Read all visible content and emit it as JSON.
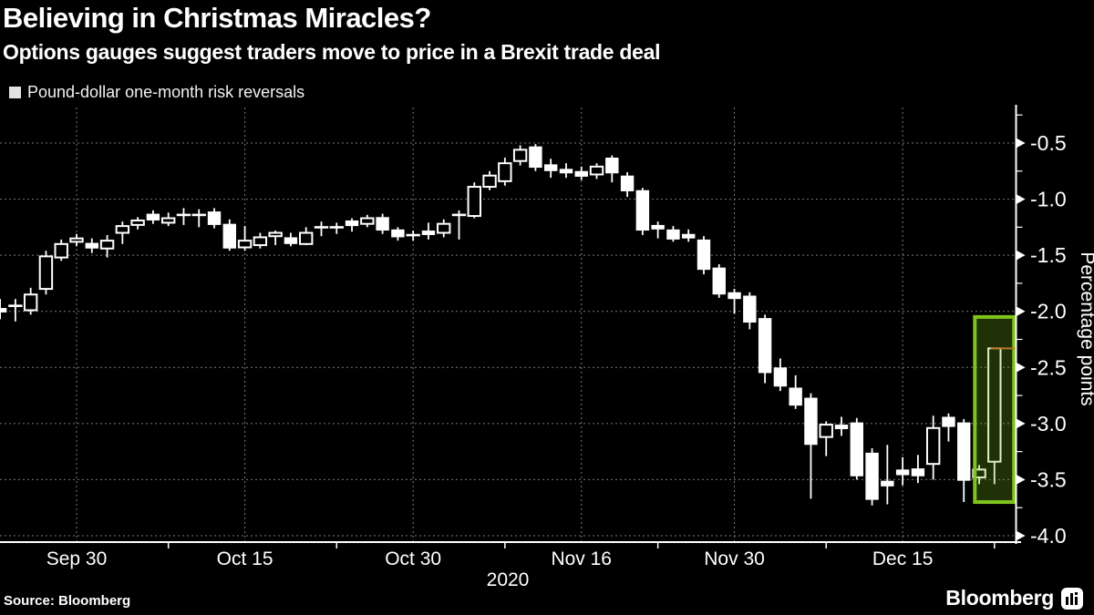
{
  "header": {
    "title": "Believing in Christmas Miracles?",
    "subtitle": "Options gauges suggest traders move to price in a Brexit trade deal"
  },
  "legend": {
    "label": "Pound-dollar one-month risk reversals"
  },
  "footer": {
    "source_label": "Source: Bloomberg",
    "brand_label": "Bloomberg"
  },
  "colors": {
    "background": "#000000",
    "text": "#ffffff",
    "grid": "#7a7a7a",
    "axis": "#ffffff",
    "candle": "#ffffff",
    "legend_swatch": "#e4e4e4",
    "highlight_border": "#7FC31C",
    "highlight_fill": "rgba(127,195,28,0.25)",
    "last_price": "#B97A2A"
  },
  "chart_data": {
    "type": "candlestick",
    "title": "Believing in Christmas Miracles?",
    "series_name": "Pound-dollar one-month risk reversals",
    "ylabel": "Percentage points",
    "x_year_label": "2020",
    "ylim": [
      -4.15,
      -0.17
    ],
    "grid": true,
    "axis_position": "right",
    "legend_position": "top-left",
    "y_tick_values": [
      -0.5,
      -1.0,
      -1.5,
      -2.0,
      -2.5,
      -3.0,
      -3.5,
      -4.0
    ],
    "y_tick_labels": [
      "-0.5",
      "-1.0",
      "-1.5",
      "-2.0",
      "-2.5",
      "-3.0",
      "-3.5",
      "-4.0"
    ],
    "y_minor_step": 0.25,
    "x_labels": [
      {
        "label": "Sep 30",
        "index": 5
      },
      {
        "label": "Oct 15",
        "index": 16
      },
      {
        "label": "Oct 30",
        "index": 27
      },
      {
        "label": "Nov 16",
        "index": 38
      },
      {
        "label": "Nov 30",
        "index": 48
      },
      {
        "label": "Dec 15",
        "index": 59
      }
    ],
    "x_minor_tick_indices": [
      11,
      22,
      33,
      43,
      54,
      65
    ],
    "candles": [
      {
        "date": "Sep 23",
        "o": -1.97,
        "h": -1.89,
        "l": -2.07,
        "c": -2.01
      },
      {
        "date": "Sep 24",
        "o": -1.97,
        "h": -1.89,
        "l": -2.09,
        "c": -1.95
      },
      {
        "date": "Sep 25",
        "o": -1.99,
        "h": -1.79,
        "l": -2.03,
        "c": -1.85
      },
      {
        "date": "Sep 28",
        "o": -1.8,
        "h": -1.46,
        "l": -1.85,
        "c": -1.51
      },
      {
        "date": "Sep 29",
        "o": -1.52,
        "h": -1.36,
        "l": -1.55,
        "c": -1.4
      },
      {
        "date": "Sep 30",
        "o": -1.38,
        "h": -1.31,
        "l": -1.42,
        "c": -1.35
      },
      {
        "date": "Oct 1",
        "o": -1.39,
        "h": -1.35,
        "l": -1.48,
        "c": -1.44
      },
      {
        "date": "Oct 2",
        "o": -1.44,
        "h": -1.32,
        "l": -1.52,
        "c": -1.37
      },
      {
        "date": "Oct 5",
        "o": -1.3,
        "h": -1.2,
        "l": -1.4,
        "c": -1.24
      },
      {
        "date": "Oct 6",
        "o": -1.23,
        "h": -1.16,
        "l": -1.27,
        "c": -1.19
      },
      {
        "date": "Oct 7",
        "o": -1.13,
        "h": -1.1,
        "l": -1.22,
        "c": -1.19
      },
      {
        "date": "Oct 8",
        "o": -1.21,
        "h": -1.12,
        "l": -1.24,
        "c": -1.17
      },
      {
        "date": "Oct 9",
        "o": -1.16,
        "h": -1.08,
        "l": -1.23,
        "c": -1.14
      },
      {
        "date": "Oct 12",
        "o": -1.14,
        "h": -1.09,
        "l": -1.25,
        "c": -1.16
      },
      {
        "date": "Oct 13",
        "o": -1.11,
        "h": -1.08,
        "l": -1.26,
        "c": -1.23
      },
      {
        "date": "Oct 14",
        "o": -1.22,
        "h": -1.18,
        "l": -1.46,
        "c": -1.44
      },
      {
        "date": "Oct 15",
        "o": -1.43,
        "h": -1.24,
        "l": -1.46,
        "c": -1.37
      },
      {
        "date": "Oct 16",
        "o": -1.41,
        "h": -1.3,
        "l": -1.44,
        "c": -1.34
      },
      {
        "date": "Oct 19",
        "o": -1.33,
        "h": -1.28,
        "l": -1.41,
        "c": -1.3
      },
      {
        "date": "Oct 20",
        "o": -1.34,
        "h": -1.3,
        "l": -1.42,
        "c": -1.4
      },
      {
        "date": "Oct 21",
        "o": -1.4,
        "h": -1.25,
        "l": -1.41,
        "c": -1.3
      },
      {
        "date": "Oct 22",
        "o": -1.26,
        "h": -1.2,
        "l": -1.33,
        "c": -1.25
      },
      {
        "date": "Oct 23",
        "o": -1.25,
        "h": -1.21,
        "l": -1.31,
        "c": -1.27
      },
      {
        "date": "Oct 26",
        "o": -1.19,
        "h": -1.17,
        "l": -1.29,
        "c": -1.24
      },
      {
        "date": "Oct 27",
        "o": -1.22,
        "h": -1.14,
        "l": -1.25,
        "c": -1.17
      },
      {
        "date": "Oct 28",
        "o": -1.16,
        "h": -1.13,
        "l": -1.31,
        "c": -1.28
      },
      {
        "date": "Oct 29",
        "o": -1.27,
        "h": -1.25,
        "l": -1.37,
        "c": -1.34
      },
      {
        "date": "Oct 30",
        "o": -1.32,
        "h": -1.28,
        "l": -1.37,
        "c": -1.33
      },
      {
        "date": "Nov 2",
        "o": -1.28,
        "h": -1.21,
        "l": -1.36,
        "c": -1.32
      },
      {
        "date": "Nov 3",
        "o": -1.3,
        "h": -1.18,
        "l": -1.34,
        "c": -1.22
      },
      {
        "date": "Nov 4",
        "o": -1.14,
        "h": -1.1,
        "l": -1.36,
        "c": -1.16
      },
      {
        "date": "Nov 5",
        "o": -1.15,
        "h": -0.85,
        "l": -1.17,
        "c": -0.89
      },
      {
        "date": "Nov 6",
        "o": -0.89,
        "h": -0.75,
        "l": -0.92,
        "c": -0.79
      },
      {
        "date": "Nov 9",
        "o": -0.84,
        "h": -0.63,
        "l": -0.88,
        "c": -0.68
      },
      {
        "date": "Nov 10",
        "o": -0.66,
        "h": -0.52,
        "l": -0.7,
        "c": -0.56
      },
      {
        "date": "Nov 11",
        "o": -0.53,
        "h": -0.51,
        "l": -0.75,
        "c": -0.72
      },
      {
        "date": "Nov 12",
        "o": -0.69,
        "h": -0.64,
        "l": -0.81,
        "c": -0.75
      },
      {
        "date": "Nov 13",
        "o": -0.73,
        "h": -0.68,
        "l": -0.81,
        "c": -0.77
      },
      {
        "date": "Nov 16",
        "o": -0.75,
        "h": -0.71,
        "l": -0.83,
        "c": -0.8
      },
      {
        "date": "Nov 17",
        "o": -0.78,
        "h": -0.68,
        "l": -0.82,
        "c": -0.71
      },
      {
        "date": "Nov 18",
        "o": -0.63,
        "h": -0.61,
        "l": -0.85,
        "c": -0.77
      },
      {
        "date": "Nov 19",
        "o": -0.79,
        "h": -0.76,
        "l": -0.98,
        "c": -0.93
      },
      {
        "date": "Nov 20",
        "o": -0.92,
        "h": -0.9,
        "l": -1.32,
        "c": -1.28
      },
      {
        "date": "Nov 23",
        "o": -1.23,
        "h": -1.2,
        "l": -1.35,
        "c": -1.27
      },
      {
        "date": "Nov 24",
        "o": -1.27,
        "h": -1.24,
        "l": -1.38,
        "c": -1.36
      },
      {
        "date": "Nov 25",
        "o": -1.31,
        "h": -1.27,
        "l": -1.38,
        "c": -1.35
      },
      {
        "date": "Nov 26",
        "o": -1.36,
        "h": -1.33,
        "l": -1.67,
        "c": -1.63
      },
      {
        "date": "Nov 27",
        "o": -1.61,
        "h": -1.58,
        "l": -1.88,
        "c": -1.85
      },
      {
        "date": "Nov 30",
        "o": -1.83,
        "h": -1.8,
        "l": -2.02,
        "c": -1.89
      },
      {
        "date": "Dec 1",
        "o": -1.86,
        "h": -1.83,
        "l": -2.16,
        "c": -2.1
      },
      {
        "date": "Dec 2",
        "o": -2.06,
        "h": -2.03,
        "l": -2.64,
        "c": -2.55
      },
      {
        "date": "Dec 3",
        "o": -2.5,
        "h": -2.42,
        "l": -2.71,
        "c": -2.67
      },
      {
        "date": "Dec 4",
        "o": -2.68,
        "h": -2.57,
        "l": -2.87,
        "c": -2.84
      },
      {
        "date": "Dec 7",
        "o": -2.77,
        "h": -2.73,
        "l": -3.67,
        "c": -3.19
      },
      {
        "date": "Dec 8",
        "o": -3.12,
        "h": -2.98,
        "l": -3.29,
        "c": -3.01
      },
      {
        "date": "Dec 9",
        "o": -3.01,
        "h": -2.94,
        "l": -3.11,
        "c": -3.05
      },
      {
        "date": "Dec 10",
        "o": -2.99,
        "h": -2.95,
        "l": -3.5,
        "c": -3.47
      },
      {
        "date": "Dec 11",
        "o": -3.26,
        "h": -3.22,
        "l": -3.73,
        "c": -3.68
      },
      {
        "date": "Dec 14",
        "o": -3.51,
        "h": -3.19,
        "l": -3.72,
        "c": -3.56
      },
      {
        "date": "Dec 15",
        "o": -3.41,
        "h": -3.3,
        "l": -3.55,
        "c": -3.46
      },
      {
        "date": "Dec 16",
        "o": -3.4,
        "h": -3.28,
        "l": -3.53,
        "c": -3.47
      },
      {
        "date": "Dec 17",
        "o": -3.36,
        "h": -2.93,
        "l": -3.5,
        "c": -3.04
      },
      {
        "date": "Dec 18",
        "o": -2.94,
        "h": -2.91,
        "l": -3.16,
        "c": -3.03
      },
      {
        "date": "Dec 21",
        "o": -2.99,
        "h": -2.96,
        "l": -3.7,
        "c": -3.51
      },
      {
        "date": "Dec 22",
        "o": -3.48,
        "h": -3.37,
        "l": -3.54,
        "c": -3.41
      },
      {
        "date": "Dec 23",
        "o": -3.34,
        "h": -2.33,
        "l": -3.54,
        "c": -2.33
      }
    ],
    "highlight_box": {
      "candle_index": 65,
      "v_top": -2.05,
      "v_bottom": -3.7
    },
    "last_price_line": {
      "value": -2.33
    }
  }
}
